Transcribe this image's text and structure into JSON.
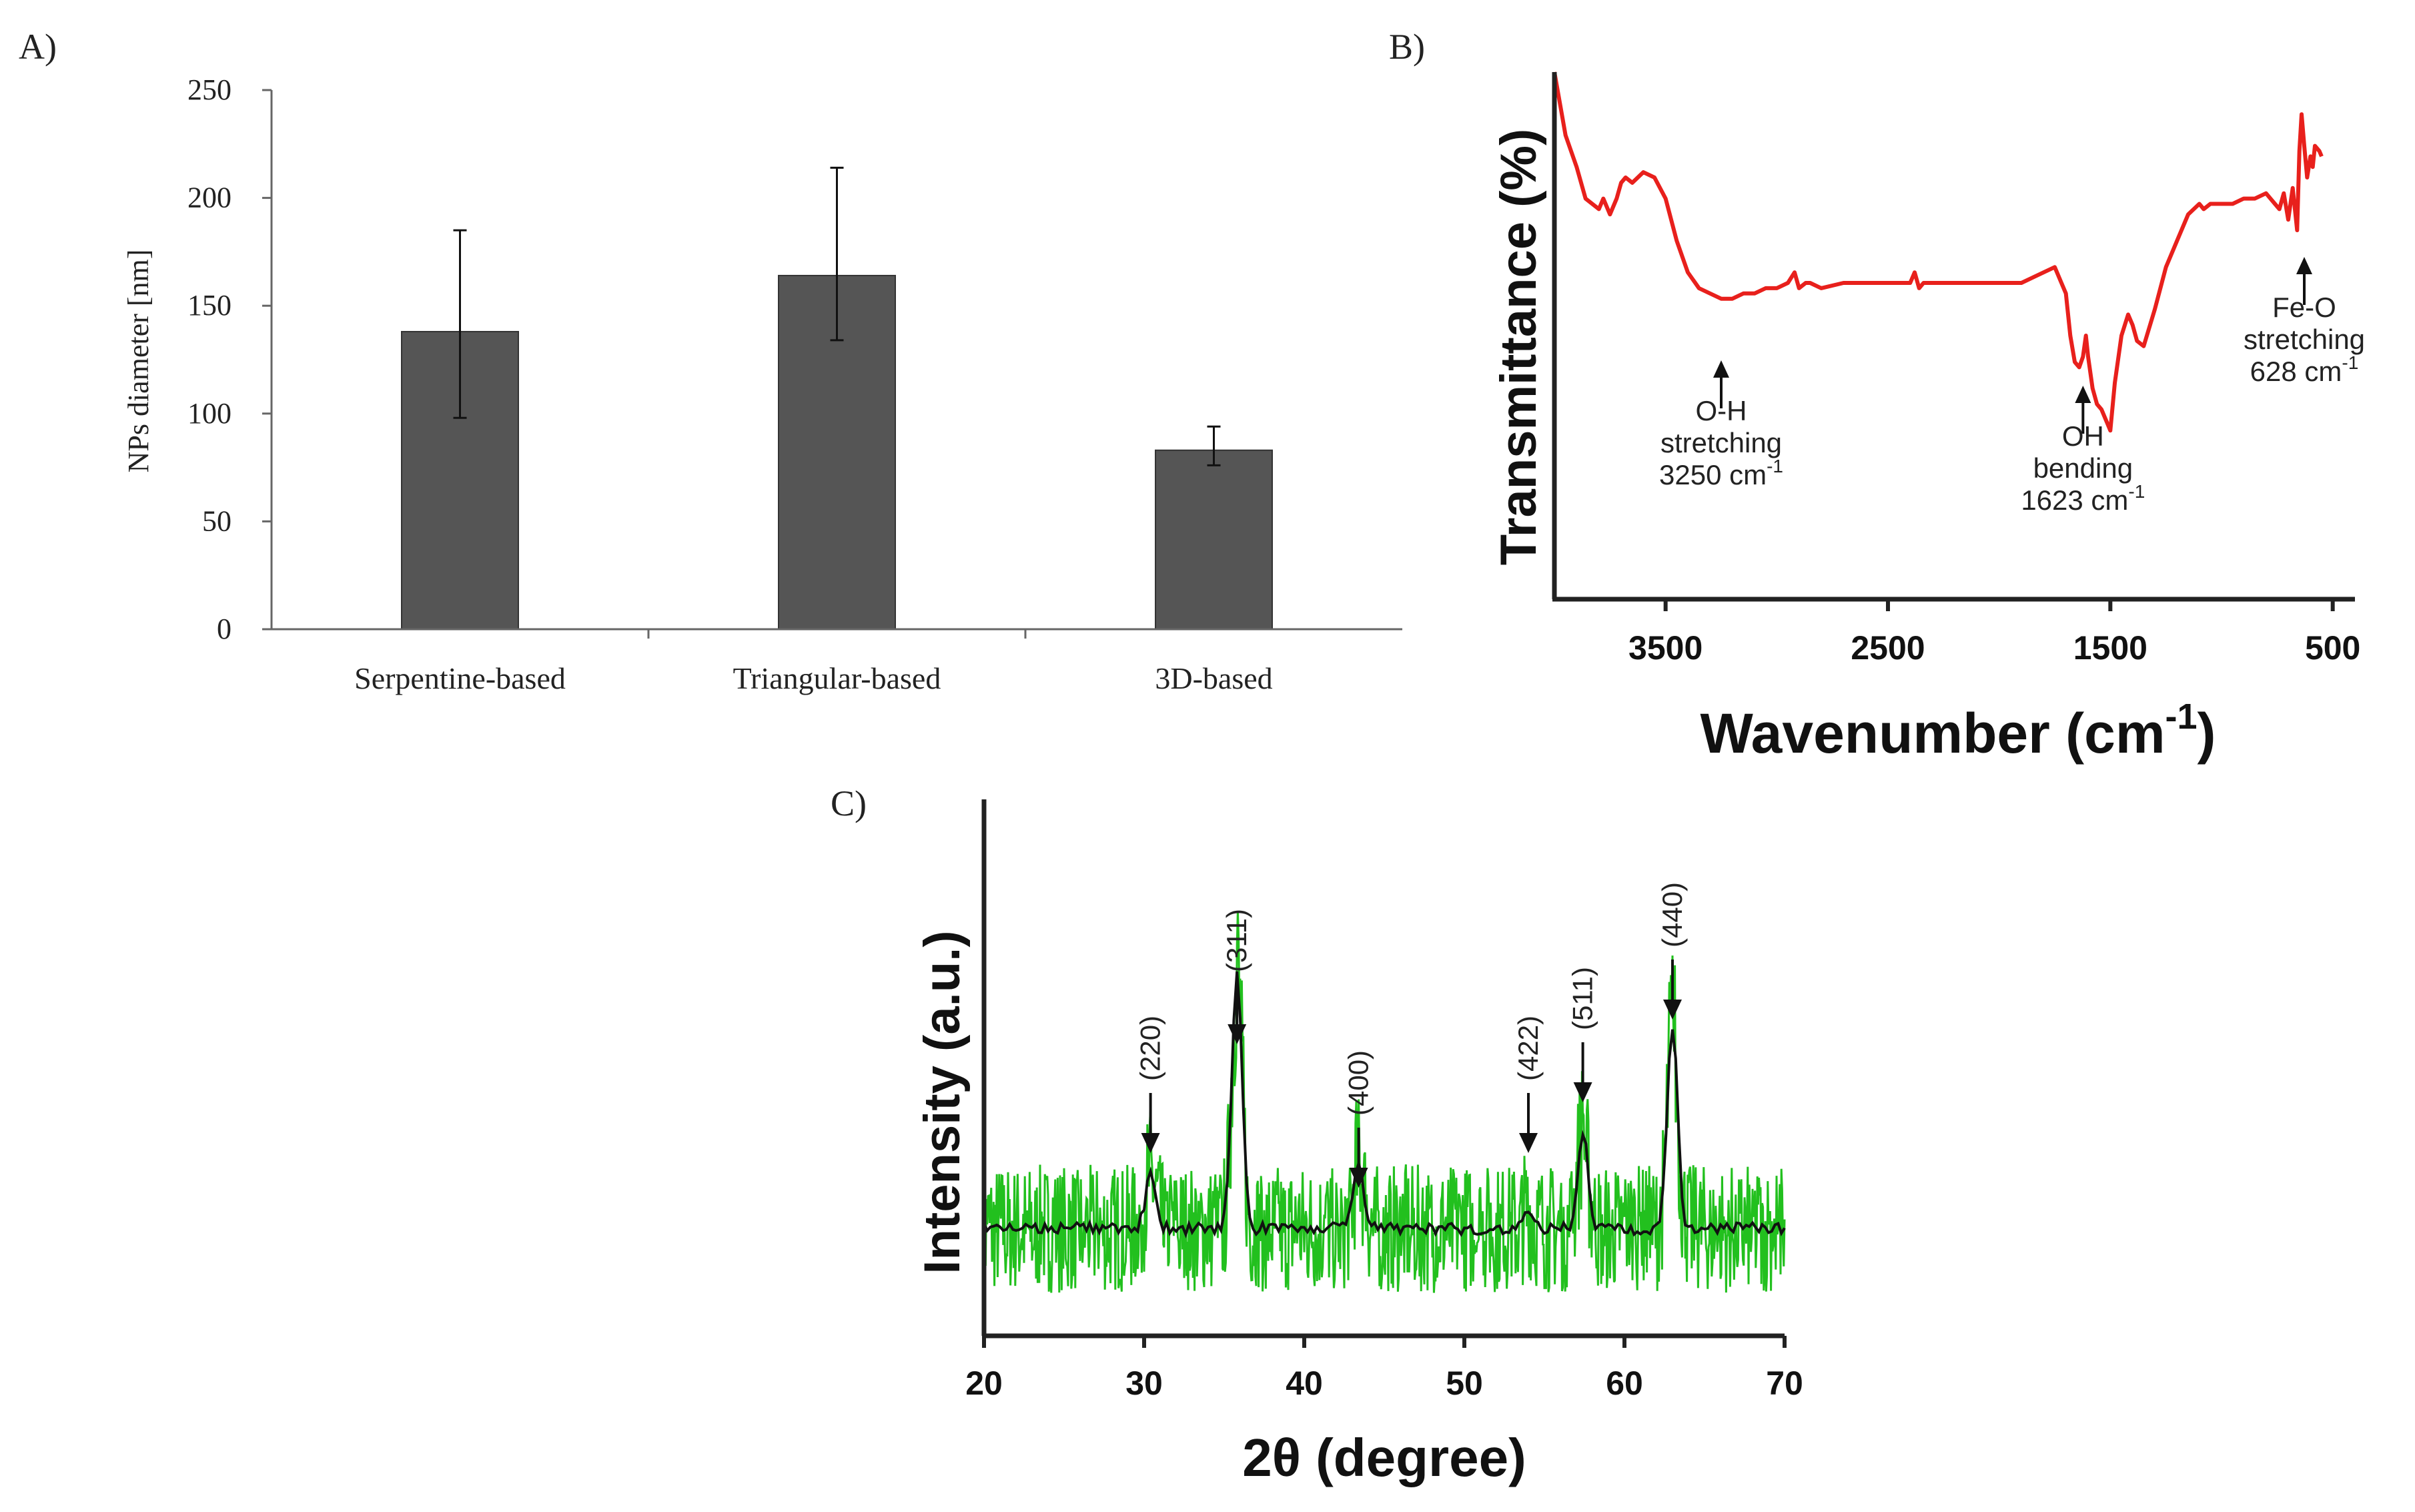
{
  "panels": {
    "a": {
      "label": "A)"
    },
    "b": {
      "label": "B)"
    },
    "c": {
      "label": "C)"
    }
  },
  "colors": {
    "bar_fill": "#555555",
    "ftir_line": "#e8201c",
    "xrd_raw": "#22c01e",
    "xrd_smooth": "#111111",
    "axis": "#222222"
  },
  "chart_data": [
    {
      "id": "bars",
      "type": "bar",
      "categories": [
        "Serpentine-based",
        "Triangular-based",
        "3D-based"
      ],
      "values": [
        138,
        164,
        83
      ],
      "error_low": [
        98,
        134,
        76
      ],
      "error_high": [
        185,
        214,
        94
      ],
      "title": "",
      "xlabel": "",
      "ylabel": "NPs diameter [nm]",
      "ylim": [
        0,
        250
      ],
      "yticks": [
        "0",
        "50",
        "100",
        "150",
        "200",
        "250"
      ],
      "grid": false
    },
    {
      "id": "ftir",
      "type": "line",
      "xlabel": "Wavenumber (cm",
      "xlabel_sup": "-1",
      "xlabel_end": ")",
      "ylabel": "Transmittance (%)",
      "xlim": [
        4000,
        400
      ],
      "xticks": [
        "3500",
        "2500",
        "1500",
        "500"
      ],
      "xtick_values": [
        3500,
        2500,
        1500,
        500
      ],
      "ylim": [
        0,
        100
      ],
      "series": [
        {
          "x": [
            4000,
            3950,
            3900,
            3860,
            3800,
            3780,
            3750,
            3720,
            3700,
            3680,
            3650,
            3600,
            3550,
            3500,
            3450,
            3400,
            3350,
            3300,
            3250,
            3200,
            3150,
            3100,
            3050,
            3000,
            2950,
            2920,
            2900,
            2870,
            2850,
            2800,
            2700,
            2600,
            2500,
            2450,
            2400,
            2380,
            2360,
            2340,
            2300,
            2200,
            2100,
            2000,
            1900,
            1850,
            1800,
            1750,
            1720,
            1700,
            1680,
            1660,
            1640,
            1623,
            1610,
            1600,
            1580,
            1560,
            1540,
            1520,
            1500,
            1480,
            1450,
            1420,
            1400,
            1380,
            1350,
            1300,
            1250,
            1200,
            1150,
            1100,
            1080,
            1050,
            1000,
            950,
            900,
            850,
            800,
            780,
            760,
            740,
            720,
            700,
            680,
            660,
            650,
            640,
            628,
            615,
            600,
            590,
            580,
            560,
            550
          ],
          "y": [
            100,
            88,
            82,
            76,
            74,
            76,
            73,
            76,
            79,
            80,
            79,
            81,
            80,
            76,
            68,
            62,
            59,
            58,
            57,
            57,
            58,
            58,
            59,
            59,
            60,
            62,
            59,
            60,
            60,
            59,
            60,
            60,
            60,
            60,
            60,
            62,
            59,
            60,
            60,
            60,
            60,
            60,
            60,
            61,
            62,
            63,
            60,
            58,
            50,
            45,
            44,
            46,
            50,
            46,
            40,
            37,
            36,
            34,
            32,
            41,
            50,
            54,
            52,
            49,
            48,
            55,
            63,
            68,
            73,
            75,
            74,
            75,
            75,
            75,
            76,
            76,
            77,
            76,
            75,
            74,
            77,
            72,
            78,
            70,
            85,
            92,
            86,
            80,
            84,
            82,
            86,
            85,
            84
          ]
        }
      ],
      "annotations": [
        {
          "lines": [
            "O-H",
            "stretching",
            "3250 cm"
          ],
          "sup": "-1",
          "x": 3250
        },
        {
          "lines": [
            "OH",
            "bending",
            "1623 cm"
          ],
          "sup": "-1",
          "x": 1623
        },
        {
          "lines": [
            "Fe-O",
            "stretching",
            "628 cm"
          ],
          "sup": "-1",
          "x": 628
        }
      ]
    },
    {
      "id": "xrd",
      "type": "line",
      "xlabel": "2θ (degree)",
      "ylabel": "Intensity (a.u.)",
      "xlim": [
        20,
        70
      ],
      "xticks": [
        "20",
        "30",
        "40",
        "50",
        "60",
        "70"
      ],
      "xtick_values": [
        20,
        30,
        40,
        50,
        60,
        70
      ],
      "ylim": [
        0,
        100
      ],
      "peaks": [
        {
          "label": "(220)",
          "x": 30.4,
          "height": 10
        },
        {
          "label": "(311)",
          "x": 35.8,
          "height": 48
        },
        {
          "label": "(400)",
          "x": 43.4,
          "height": 12
        },
        {
          "label": "(422)",
          "x": 54.0,
          "height": 3
        },
        {
          "label": "(511)",
          "x": 57.4,
          "height": 18
        },
        {
          "label": "(440)",
          "x": 63.0,
          "height": 38
        }
      ],
      "baseline": 20,
      "noise_amplitude": 9,
      "series": [
        {
          "name": "",
          "kind": "raw"
        },
        {
          "name": "",
          "kind": "smoothed"
        }
      ]
    }
  ]
}
